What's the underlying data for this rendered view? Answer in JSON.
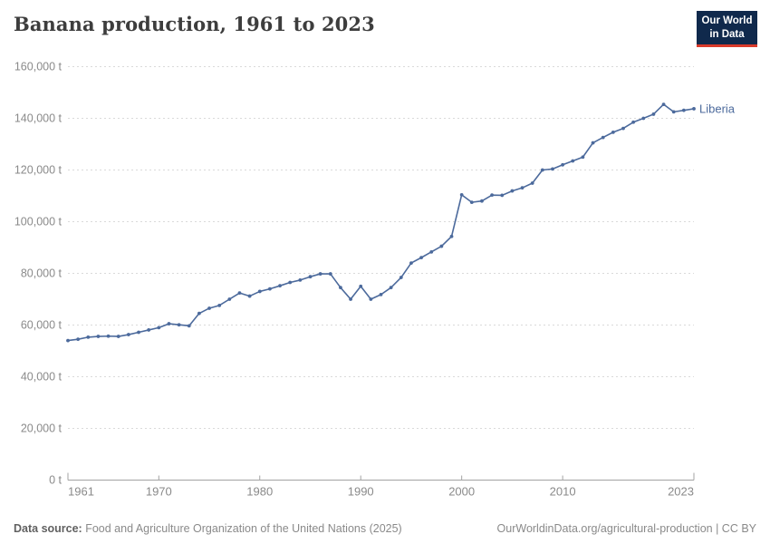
{
  "header": {
    "title": "Banana production, 1961 to 2023",
    "logo": {
      "line1": "Our World",
      "line2": "in Data"
    }
  },
  "chart_data": {
    "type": "line",
    "title": "Banana production, 1961 to 2023",
    "unit": "t",
    "xlabel": "",
    "ylabel": "",
    "xlim": [
      1961,
      2023
    ],
    "ylim": [
      0,
      160000
    ],
    "grid": "horizontal-dashed",
    "legend_position": "end-of-line-label",
    "x_ticks": [
      1961,
      1970,
      1980,
      1990,
      2000,
      2010,
      2023
    ],
    "y_ticks": [
      0,
      20000,
      40000,
      60000,
      80000,
      100000,
      120000,
      140000,
      160000
    ],
    "series": [
      {
        "name": "Liberia",
        "color": "#4c6a9c",
        "years": [
          1961,
          1962,
          1963,
          1964,
          1965,
          1966,
          1967,
          1968,
          1969,
          1970,
          1971,
          1972,
          1973,
          1974,
          1975,
          1976,
          1977,
          1978,
          1979,
          1980,
          1981,
          1982,
          1983,
          1984,
          1985,
          1986,
          1987,
          1988,
          1989,
          1990,
          1991,
          1992,
          1993,
          1994,
          1995,
          1996,
          1997,
          1998,
          1999,
          2000,
          2001,
          2002,
          2003,
          2004,
          2005,
          2006,
          2007,
          2008,
          2009,
          2010,
          2011,
          2012,
          2013,
          2014,
          2015,
          2016,
          2017,
          2018,
          2019,
          2020,
          2021,
          2022,
          2023
        ],
        "values": [
          54000,
          54500,
          55300,
          55600,
          55700,
          55600,
          56300,
          57200,
          58100,
          59000,
          60500,
          60100,
          59700,
          64500,
          66500,
          67600,
          70000,
          72400,
          71200,
          73000,
          74000,
          75200,
          76500,
          77400,
          78700,
          79800,
          79800,
          74500,
          70000,
          75000,
          70000,
          71800,
          74500,
          78400,
          84000,
          86100,
          88300,
          90500,
          94300,
          110400,
          107500,
          108000,
          110300,
          110200,
          111900,
          113100,
          114900,
          120000,
          120400,
          122000,
          123500,
          125000,
          130500,
          132600,
          134600,
          136100,
          138500,
          140000,
          141600,
          145400,
          142500,
          143100,
          143700
        ]
      }
    ]
  },
  "footer": {
    "data_source_label": "Data source:",
    "data_source_text": " Food and Agriculture Organization of the United Nations (2025)",
    "attribution": "OurWorldinData.org/agricultural-production | CC BY"
  },
  "colors": {
    "line": "#4c6a9c",
    "grid": "#dadada",
    "axis": "#a3a3a3",
    "tick_text": "#8a8a8a",
    "title_text": "#3d3d3d",
    "logo_bg": "#10294c",
    "logo_red": "#d93a2b"
  }
}
